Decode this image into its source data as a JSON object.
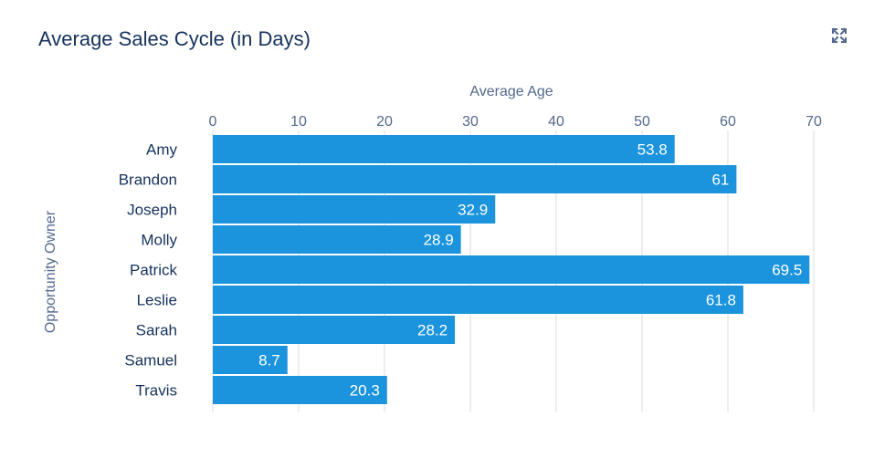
{
  "header": {
    "title": "Average Sales Cycle (in Days)",
    "expand_icon": "expand-icon"
  },
  "colors": {
    "bar": "#1b94dd",
    "grid": "#d8dde6",
    "title": "#16325c",
    "axis_text": "#54698d"
  },
  "chart_data": {
    "type": "bar",
    "orientation": "horizontal",
    "title": "Average Sales Cycle (in Days)",
    "xlabel": "Average Age",
    "ylabel": "Opportunity Owner",
    "xlim": [
      0,
      70
    ],
    "xticks": [
      0,
      10,
      20,
      30,
      40,
      50,
      60,
      70
    ],
    "grid": true,
    "categories": [
      "Amy",
      "Brandon",
      "Joseph",
      "Molly",
      "Patrick",
      "Leslie",
      "Sarah",
      "Samuel",
      "Travis"
    ],
    "values": [
      53.8,
      61,
      32.9,
      28.9,
      69.5,
      61.8,
      28.2,
      8.7,
      20.3
    ],
    "data_labels": [
      "53.8",
      "61",
      "32.9",
      "28.9",
      "69.5",
      "61.8",
      "28.2",
      "8.7",
      "20.3"
    ]
  }
}
